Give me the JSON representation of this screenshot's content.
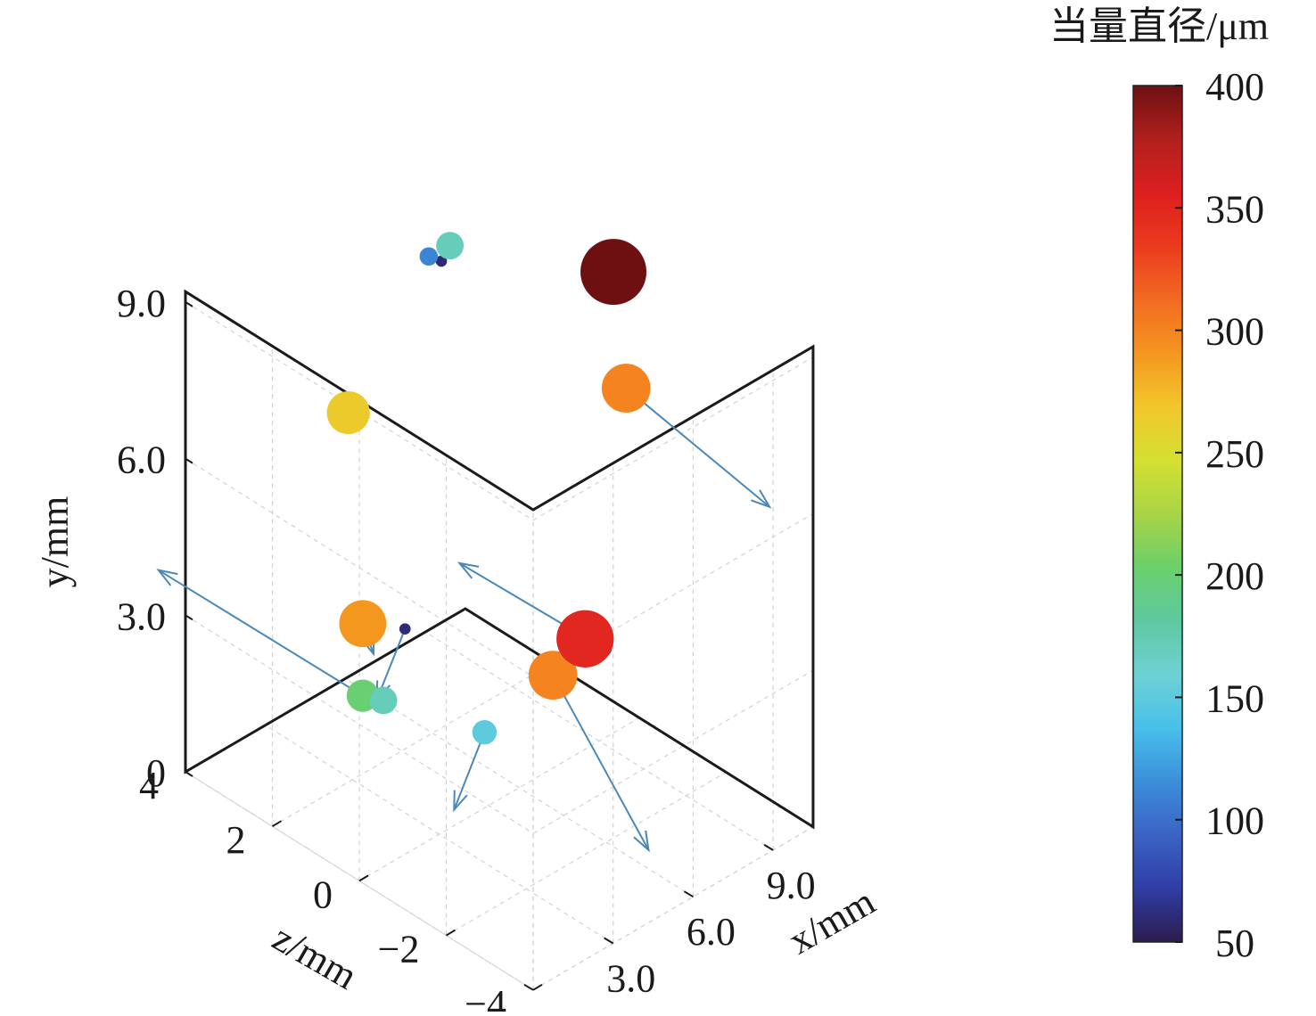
{
  "chart_data": {
    "type": "scatter",
    "subtype": "3d-bubble-with-vectors",
    "view": "isometric",
    "axes": {
      "x": {
        "label": "x/mm",
        "range": [
          0,
          10.5
        ],
        "ticks": [
          0,
          3,
          6,
          9
        ],
        "tick_labels": [
          "0",
          "3.0",
          "6.0",
          "9.0"
        ]
      },
      "y": {
        "label": "y/mm",
        "range": [
          0,
          9.2
        ],
        "ticks": [
          0,
          3,
          6,
          9
        ],
        "tick_labels": [
          "0",
          "3.0",
          "6.0",
          "9.0"
        ]
      },
      "z": {
        "label": "z/mm",
        "range": [
          -4,
          4
        ],
        "ticks": [
          4,
          2,
          0,
          -2,
          -4
        ],
        "tick_labels": [
          "4",
          "2",
          "0",
          "−2",
          "−4"
        ]
      }
    },
    "grid": true,
    "colorbar": {
      "title": "当量直径/μm",
      "range": [
        50,
        400
      ],
      "ticks": [
        400,
        350,
        300,
        250,
        200,
        150,
        100,
        50
      ],
      "tick_labels": [
        "400",
        "350",
        "300",
        "250",
        "200",
        "150",
        "100",
        "50"
      ],
      "colormap": [
        "#2c1c4e",
        "#2f3da5",
        "#3b63c5",
        "#3c8fd9",
        "#48c0ea",
        "#6ed1d4",
        "#5ec9a0",
        "#6bd06a",
        "#a9d445",
        "#d4e032",
        "#f2c62a",
        "#f5961f",
        "#f26a22",
        "#ec3a1e",
        "#dd1f1f",
        "#b0201c",
        "#6e1012"
      ]
    },
    "points": [
      {
        "x": 9.5,
        "y": 8.85,
        "z": -0.02,
        "d": 400
      },
      {
        "x": 8.1,
        "y": 7.64,
        "z": -1.17,
        "d": 300
      },
      {
        "x": 7.1,
        "y": 8.87,
        "z": 2.27,
        "d": 170
      },
      {
        "x": 6.5,
        "y": 8.78,
        "z": 2.39,
        "d": 110
      },
      {
        "x": 6.6,
        "y": 8.78,
        "z": 2.16,
        "d": 60
      },
      {
        "x": 4.3,
        "y": 6.18,
        "z": 2.89,
        "d": 265
      },
      {
        "x": 5.6,
        "y": 3.89,
        "z": -1.76,
        "d": 350
      },
      {
        "x": 5.6,
        "y": 3.93,
        "z": -2.17,
        "d": 110
      },
      {
        "x": 4.9,
        "y": 3.24,
        "z": -1.45,
        "d": 300
      },
      {
        "x": 2.2,
        "y": 3.61,
        "z": 1.27,
        "d": 290
      },
      {
        "x": 3.1,
        "y": 3.46,
        "z": 0.85,
        "d": 60
      },
      {
        "x": 2.2,
        "y": 2.23,
        "z": 1.27,
        "d": 200
      },
      {
        "x": 2.6,
        "y": 2.14,
        "z": 1.04,
        "d": 170
      },
      {
        "x": 4.5,
        "y": 1.57,
        "z": -0.12,
        "d": 150
      }
    ],
    "vectors": [
      {
        "x": 8.1,
        "y": 7.64,
        "z": -1.17,
        "dx": 0.0,
        "dy": -0.55,
        "dz": -3.3
      },
      {
        "x": 5.6,
        "y": 3.93,
        "z": -2.17,
        "dx": 0.0,
        "dy": -0.1,
        "dz": 3.3
      },
      {
        "x": 4.9,
        "y": 3.24,
        "z": -1.45,
        "dx": 0.0,
        "dy": -2.2,
        "dz": -2.2
      },
      {
        "x": 2.2,
        "y": 2.23,
        "z": 1.27,
        "dx": 0.0,
        "dy": -0.05,
        "dz": 4.7
      },
      {
        "x": 2.2,
        "y": 3.61,
        "z": 1.27,
        "dx": 0.0,
        "dy": -0.45,
        "dz": -0.25
      },
      {
        "x": 3.1,
        "y": 3.46,
        "z": 0.85,
        "dx": 0.0,
        "dy": -1.7,
        "dz": 0.65
      },
      {
        "x": 4.5,
        "y": 1.57,
        "z": -0.12,
        "dx": 0.0,
        "dy": -1.85,
        "dz": 0.7
      },
      {
        "x": 4.3,
        "y": 6.18,
        "z": 2.89,
        "dx": 0.0,
        "dy": -0.15,
        "dz": 0.1
      }
    ]
  }
}
